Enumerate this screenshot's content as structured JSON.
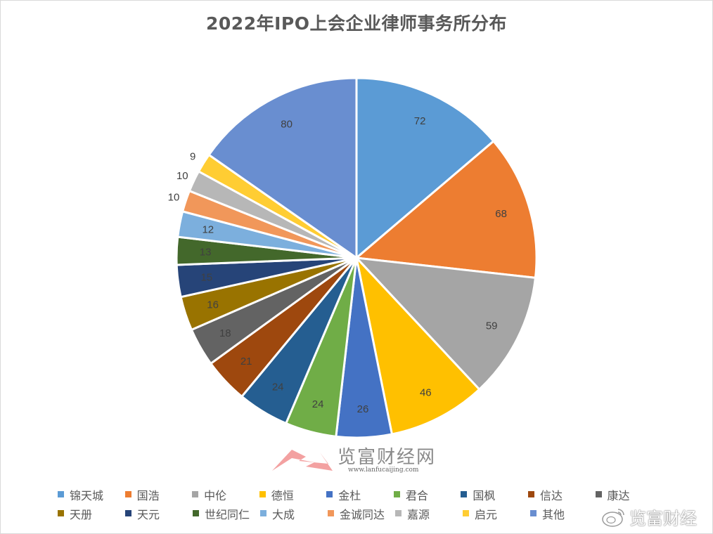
{
  "chart_data": {
    "type": "pie",
    "title": "2022年IPO上会企业律师事务所分布",
    "categories": [
      "锦天城",
      "国浩",
      "中伦",
      "德恒",
      "金杜",
      "君合",
      "国枫",
      "信达",
      "康达",
      "天册",
      "天元",
      "世纪同仁",
      "大成",
      "金诚同达",
      "嘉源",
      "启元",
      "其他"
    ],
    "values": [
      72,
      68,
      59,
      46,
      26,
      24,
      24,
      21,
      18,
      16,
      15,
      13,
      12,
      10,
      10,
      9,
      80
    ],
    "colors": [
      "#5B9BD5",
      "#ED7D31",
      "#A5A5A5",
      "#FFC000",
      "#4472C4",
      "#70AD47",
      "#255E91",
      "#9E480E",
      "#636363",
      "#997300",
      "#264478",
      "#43682B",
      "#7CAFDD",
      "#F1975A",
      "#B7B7B7",
      "#FFCD33",
      "#698ED0"
    ],
    "data_labels": true,
    "start_angle": "12 o'clock, clockwise",
    "legend_position": "bottom",
    "grid": false
  },
  "legend": {
    "rows": [
      [
        "锦天城",
        "国浩",
        "中伦",
        "德恒",
        "金杜",
        "君合",
        "国枫",
        "信达",
        "康达"
      ],
      [
        "天册",
        "天元",
        "世纪同仁",
        "大成",
        "金诚同达",
        "嘉源",
        "启元",
        "其他"
      ]
    ]
  },
  "watermarks": {
    "site_name": "览富财经网",
    "site_url": "www.lanfucaijing.com",
    "weibo_name": "览富财经"
  }
}
